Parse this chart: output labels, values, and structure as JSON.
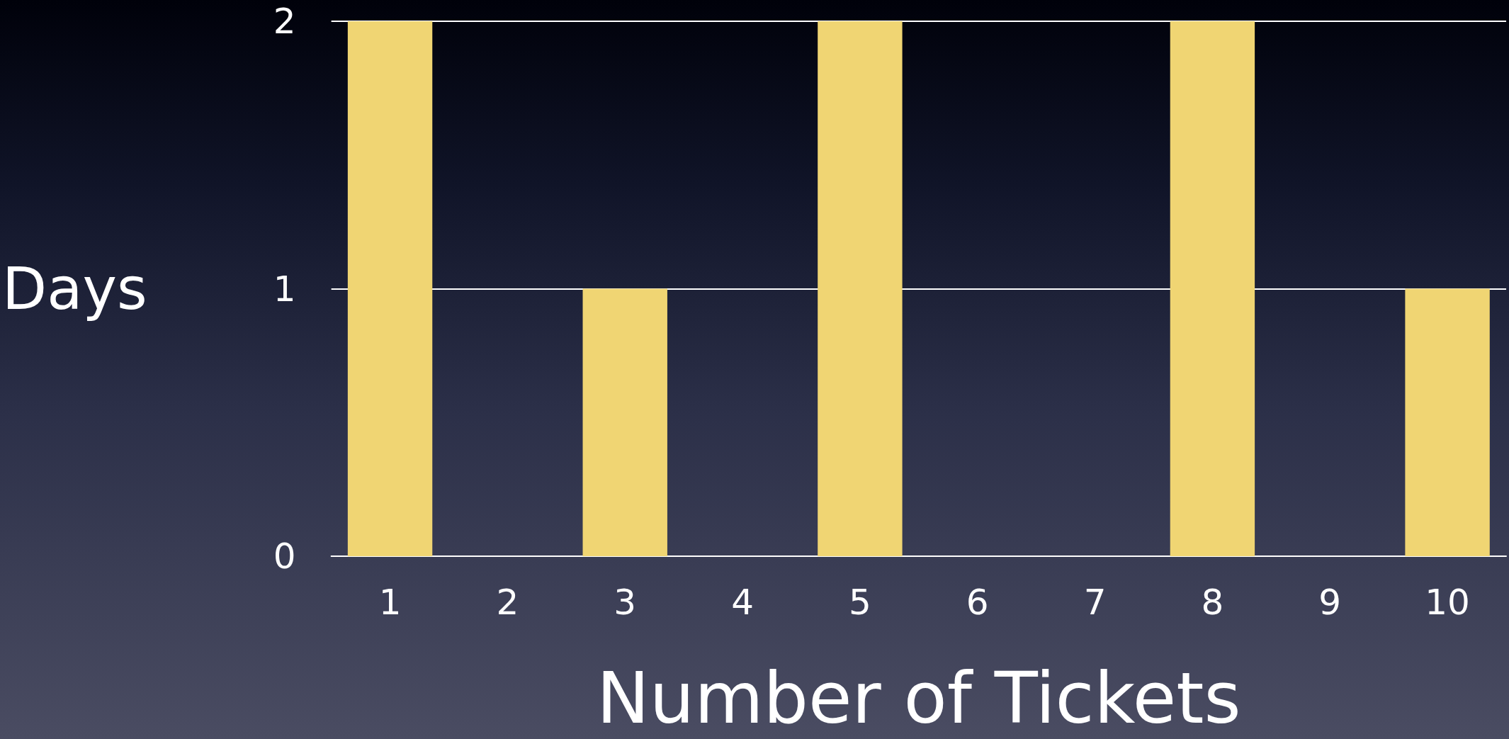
{
  "chart_data": {
    "type": "bar",
    "xlabel": "Number of Tickets",
    "ylabel": "Days",
    "categories": [
      "1",
      "2",
      "3",
      "4",
      "5",
      "6",
      "7",
      "8",
      "9",
      "10"
    ],
    "values": [
      2,
      0,
      1,
      0,
      2,
      0,
      0,
      2,
      0,
      1
    ],
    "color": "#f0d573",
    "ylim": [
      0,
      2
    ],
    "yticks": [
      0,
      1,
      2
    ],
    "grid": "y"
  }
}
